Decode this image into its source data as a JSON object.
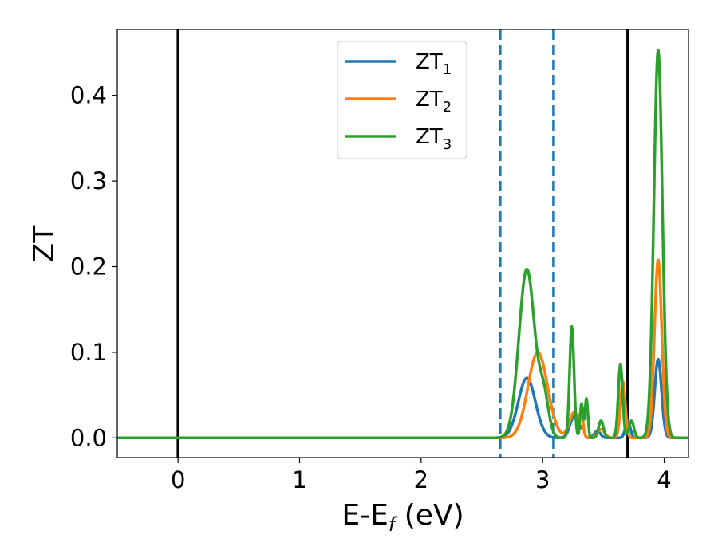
{
  "chart_data": {
    "type": "line",
    "xlabel": "E-E",
    "xlabel_sub": "f",
    "xlabel_unit": " (eV)",
    "ylabel": "ZT",
    "xlim": [
      -0.5,
      4.2
    ],
    "ylim": [
      -0.023,
      0.477
    ],
    "x_ticks": [
      0,
      1,
      2,
      3,
      4
    ],
    "x_tick_labels": [
      "0",
      "1",
      "2",
      "3",
      "4"
    ],
    "y_ticks": [
      0.0,
      0.1,
      0.2,
      0.3,
      0.4
    ],
    "y_tick_labels": [
      "0.0",
      "0.1",
      "0.2",
      "0.3",
      "0.4"
    ],
    "grid": false,
    "legend_position": "top-center",
    "vertical_lines": [
      {
        "x": 0.0,
        "style": "solid",
        "color": "#000000"
      },
      {
        "x": 2.65,
        "style": "dashed",
        "color": "#1f77b4"
      },
      {
        "x": 3.09,
        "style": "dashed",
        "color": "#1f77b4"
      },
      {
        "x": 3.7,
        "style": "solid",
        "color": "#000000"
      }
    ],
    "series": [
      {
        "name": "ZT",
        "name_sub": "1",
        "color": "#1f77b4",
        "peaks": [
          {
            "x": 2.87,
            "height": 0.07,
            "width": 0.07
          },
          {
            "x": 3.26,
            "height": 0.025,
            "width": 0.035
          },
          {
            "x": 3.33,
            "height": 0.01,
            "width": 0.012
          },
          {
            "x": 3.45,
            "height": 0.008,
            "width": 0.025
          },
          {
            "x": 3.7,
            "height": 0.02,
            "width": 0.02
          },
          {
            "x": 3.95,
            "height": 0.092,
            "width": 0.028
          }
        ]
      },
      {
        "name": "ZT",
        "name_sub": "2",
        "color": "#ff7f0e",
        "peaks": [
          {
            "x": 2.96,
            "height": 0.1,
            "width": 0.08
          },
          {
            "x": 3.26,
            "height": 0.03,
            "width": 0.04
          },
          {
            "x": 3.32,
            "height": 0.022,
            "width": 0.012
          },
          {
            "x": 3.48,
            "height": 0.01,
            "width": 0.03
          },
          {
            "x": 3.66,
            "height": 0.066,
            "width": 0.02
          },
          {
            "x": 3.95,
            "height": 0.208,
            "width": 0.03
          }
        ]
      },
      {
        "name": "ZT",
        "name_sub": "3",
        "color": "#2ca02c",
        "peaks": [
          {
            "x": 2.87,
            "height": 0.197,
            "width": 0.065
          },
          {
            "x": 3.01,
            "height": 0.045,
            "width": 0.04
          },
          {
            "x": 3.24,
            "height": 0.13,
            "width": 0.018
          },
          {
            "x": 3.32,
            "height": 0.04,
            "width": 0.012
          },
          {
            "x": 3.36,
            "height": 0.046,
            "width": 0.012
          },
          {
            "x": 3.48,
            "height": 0.02,
            "width": 0.02
          },
          {
            "x": 3.64,
            "height": 0.086,
            "width": 0.018
          },
          {
            "x": 3.73,
            "height": 0.02,
            "width": 0.02
          },
          {
            "x": 3.95,
            "height": 0.453,
            "width": 0.035
          }
        ]
      }
    ]
  }
}
